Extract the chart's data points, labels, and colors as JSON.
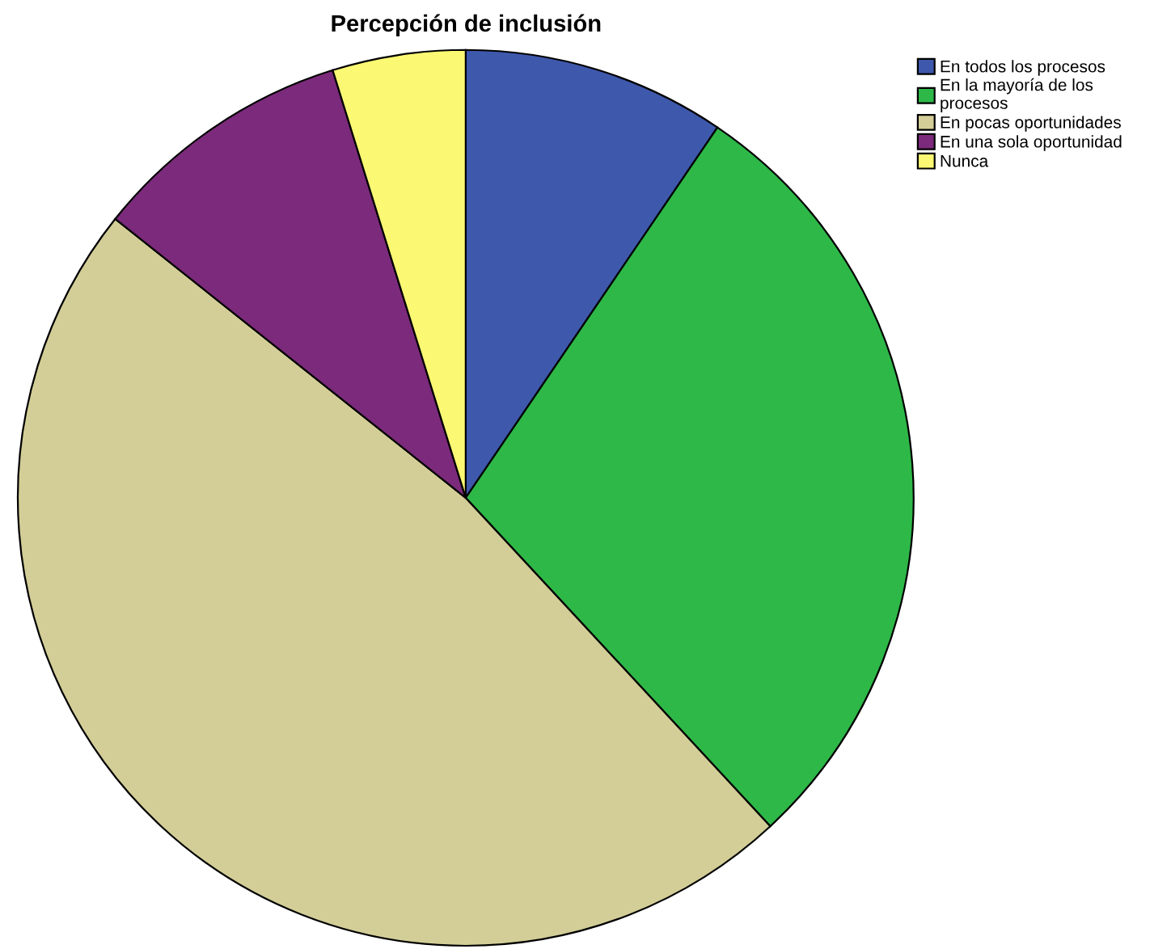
{
  "chart_data": {
    "type": "pie",
    "title": "Percepción de inclusión",
    "categories": [
      "En todos los procesos",
      "En la mayoría de los procesos",
      "En pocas oportunidades",
      "En una sola oportunidad",
      "Nunca"
    ],
    "values": [
      9.5,
      28.6,
      47.6,
      9.5,
      4.8
    ],
    "colors": [
      "#3e58ac",
      "#2eb848",
      "#d3ce97",
      "#7c2a7b",
      "#fbf873"
    ],
    "legend": "top right"
  }
}
